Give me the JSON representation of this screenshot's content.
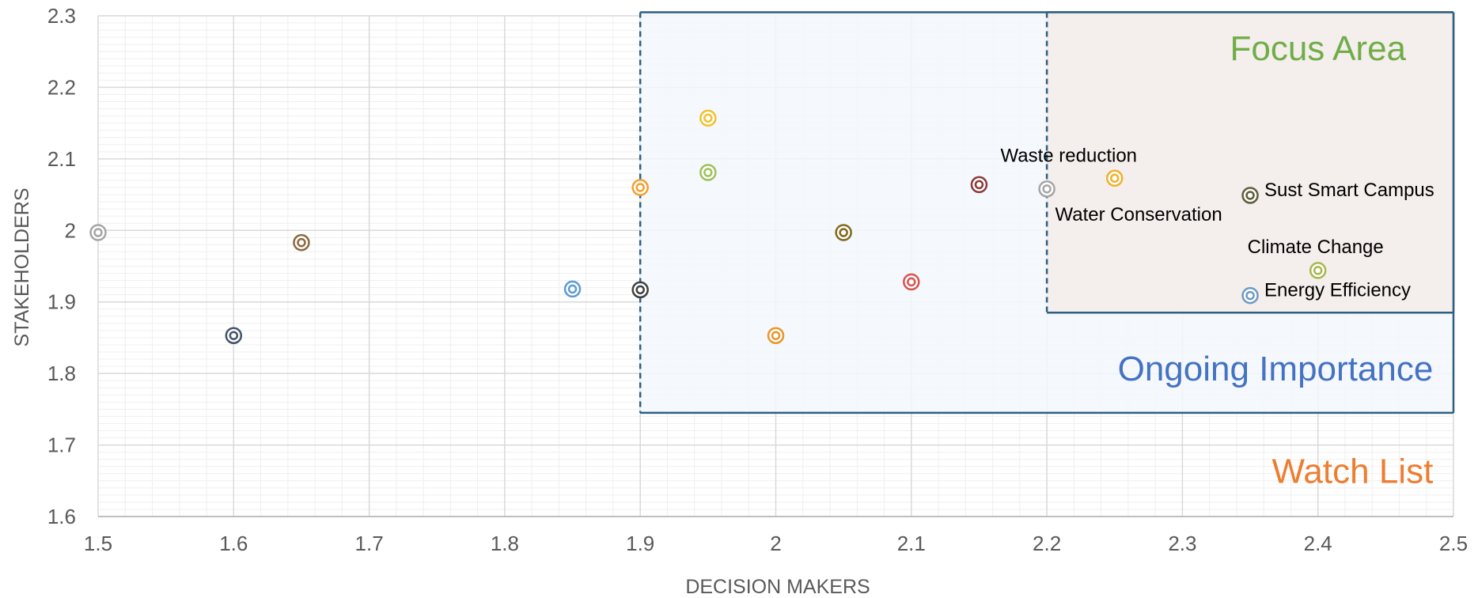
{
  "chart_data": {
    "type": "scatter",
    "xlabel": "DECISION MAKERS",
    "ylabel": "STAKEHOLDERS",
    "xlim": [
      1.5,
      2.5
    ],
    "ylim": [
      1.6,
      2.3
    ],
    "x_ticks": [
      "1.5",
      "1.6",
      "1.7",
      "1.8",
      "1.9",
      "2",
      "2.1",
      "2.2",
      "2.3",
      "2.4",
      "2.5"
    ],
    "y_ticks": [
      "1.6",
      "1.7",
      "1.8",
      "1.9",
      "2",
      "2.1",
      "2.2",
      "2.3"
    ],
    "grid": true,
    "legend": "none",
    "zones": [
      {
        "label": "Ongoing Importance",
        "x": [
          1.9,
          2.5
        ],
        "y": [
          1.745,
          2.305
        ],
        "fill": "#f3f7fb",
        "border": "#2e5f7f",
        "text_color": "#4472c4"
      },
      {
        "label": "Focus Area",
        "x": [
          2.2,
          2.5
        ],
        "y": [
          1.885,
          2.305
        ],
        "fill": "#f3ece9",
        "border": "#2e5f7f",
        "text_color": "#70ad47"
      },
      {
        "label": "Watch List",
        "x": [
          1.5,
          2.5
        ],
        "y": [
          1.6,
          1.745
        ],
        "fill": "none",
        "border": "none",
        "text_color": "#ed7d31"
      }
    ],
    "points": [
      {
        "x": 1.5,
        "y": 1.997,
        "color": "#a5a5a5",
        "label": ""
      },
      {
        "x": 1.6,
        "y": 1.853,
        "color": "#44546a",
        "label": ""
      },
      {
        "x": 1.65,
        "y": 1.983,
        "color": "#8c6a3f",
        "label": ""
      },
      {
        "x": 1.85,
        "y": 1.918,
        "color": "#5b9bd5",
        "label": ""
      },
      {
        "x": 1.9,
        "y": 1.917,
        "color": "#404040",
        "label": ""
      },
      {
        "x": 1.9,
        "y": 2.06,
        "color": "#f4a02e",
        "label": ""
      },
      {
        "x": 1.95,
        "y": 2.157,
        "color": "#f2c12e",
        "label": ""
      },
      {
        "x": 1.95,
        "y": 2.081,
        "color": "#9dc15a",
        "label": ""
      },
      {
        "x": 2.0,
        "y": 1.853,
        "color": "#e8962c",
        "label": ""
      },
      {
        "x": 2.05,
        "y": 1.997,
        "color": "#7f6a1e",
        "label": ""
      },
      {
        "x": 2.1,
        "y": 1.928,
        "color": "#d9534f",
        "label": ""
      },
      {
        "x": 2.15,
        "y": 2.064,
        "color": "#8b3a3a",
        "label": ""
      },
      {
        "x": 2.2,
        "y": 2.058,
        "color": "#a5a5a5",
        "label": "Water Conservation",
        "label_pos": "below"
      },
      {
        "x": 2.25,
        "y": 2.073,
        "color": "#f0b12c",
        "label": "Waste reduction",
        "label_pos": "above"
      },
      {
        "x": 2.35,
        "y": 2.049,
        "color": "#5e5e3a",
        "label": "Sust Smart Campus",
        "label_pos": "right"
      },
      {
        "x": 2.4,
        "y": 1.944,
        "color": "#a7b84c",
        "label": "Climate Change",
        "label_pos": "above"
      },
      {
        "x": 2.35,
        "y": 1.909,
        "color": "#6d9bc3",
        "label": "Energy Efficiency",
        "label_pos": "right"
      }
    ]
  }
}
